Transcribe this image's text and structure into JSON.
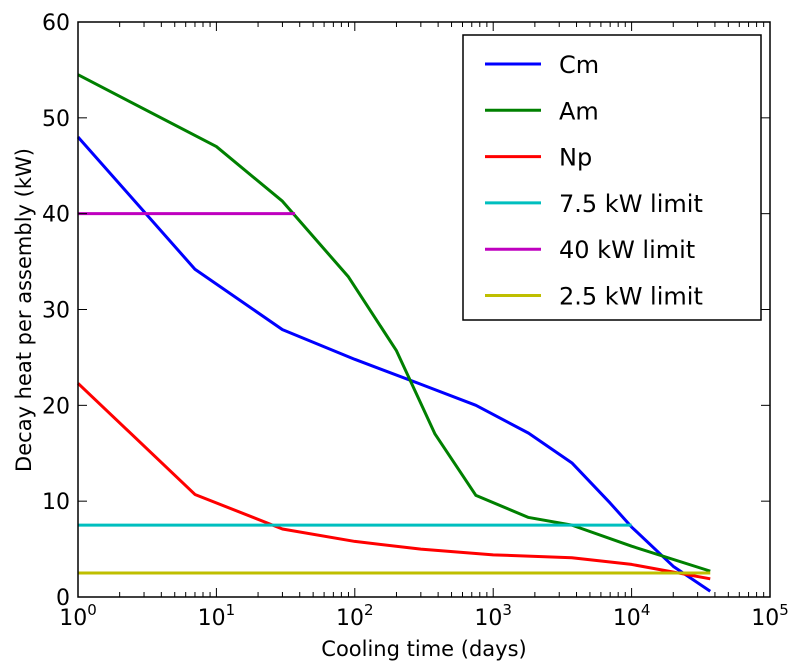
{
  "chart_data": {
    "type": "line",
    "xlabel": "Cooling time (days)",
    "ylabel": "Decay heat per assembly (kW)",
    "xscale": "log",
    "xlim": [
      1,
      100000
    ],
    "ylim": [
      0,
      60
    ],
    "x_ticks": [
      {
        "value": 1,
        "base": "10",
        "exp": "0"
      },
      {
        "value": 10,
        "base": "10",
        "exp": "1"
      },
      {
        "value": 100,
        "base": "10",
        "exp": "2"
      },
      {
        "value": 1000,
        "base": "10",
        "exp": "3"
      },
      {
        "value": 10000,
        "base": "10",
        "exp": "4"
      },
      {
        "value": 100000,
        "base": "10",
        "exp": "5"
      }
    ],
    "y_ticks": [
      {
        "value": 0,
        "label": "0"
      },
      {
        "value": 10,
        "label": "10"
      },
      {
        "value": 20,
        "label": "20"
      },
      {
        "value": 30,
        "label": "30"
      },
      {
        "value": 40,
        "label": "40"
      },
      {
        "value": 50,
        "label": "50"
      },
      {
        "value": 60,
        "label": "60"
      }
    ],
    "grid": false,
    "legend_position": "top-right",
    "series": [
      {
        "name": "Cm",
        "color": "#0000ff",
        "points": [
          [
            1,
            48
          ],
          [
            7,
            34.2
          ],
          [
            30,
            27.9
          ],
          [
            100,
            24.8
          ],
          [
            300,
            22.2
          ],
          [
            750,
            20
          ],
          [
            1800,
            17.1
          ],
          [
            3700,
            14
          ],
          [
            7000,
            9.8
          ],
          [
            10000,
            7.3
          ],
          [
            20000,
            3.2
          ],
          [
            37000,
            0.6
          ]
        ]
      },
      {
        "name": "Am",
        "color": "#008000",
        "points": [
          [
            1,
            54.5
          ],
          [
            10,
            47
          ],
          [
            30,
            41.3
          ],
          [
            90,
            33.4
          ],
          [
            200,
            25.7
          ],
          [
            380,
            17
          ],
          [
            750,
            10.6
          ],
          [
            1800,
            8.3
          ],
          [
            3700,
            7.5
          ],
          [
            10000,
            5.3
          ],
          [
            37000,
            2.7
          ]
        ]
      },
      {
        "name": "Np",
        "color": "#ff0000",
        "points": [
          [
            1,
            22.3
          ],
          [
            7,
            10.7
          ],
          [
            30,
            7.1
          ],
          [
            100,
            5.8
          ],
          [
            300,
            5
          ],
          [
            1000,
            4.4
          ],
          [
            3700,
            4.1
          ],
          [
            10000,
            3.4
          ],
          [
            37000,
            1.9
          ]
        ]
      },
      {
        "name": "7.5 kW limit",
        "color": "#00bfbf",
        "points": [
          [
            1,
            7.5
          ],
          [
            10000,
            7.5
          ]
        ]
      },
      {
        "name": "40 kW limit",
        "color": "#bf00bf",
        "points": [
          [
            1,
            40
          ],
          [
            37,
            40
          ]
        ]
      },
      {
        "name": "2.5 kW limit",
        "color": "#bfbf00",
        "points": [
          [
            1,
            2.5
          ],
          [
            37000,
            2.5
          ]
        ]
      }
    ]
  }
}
